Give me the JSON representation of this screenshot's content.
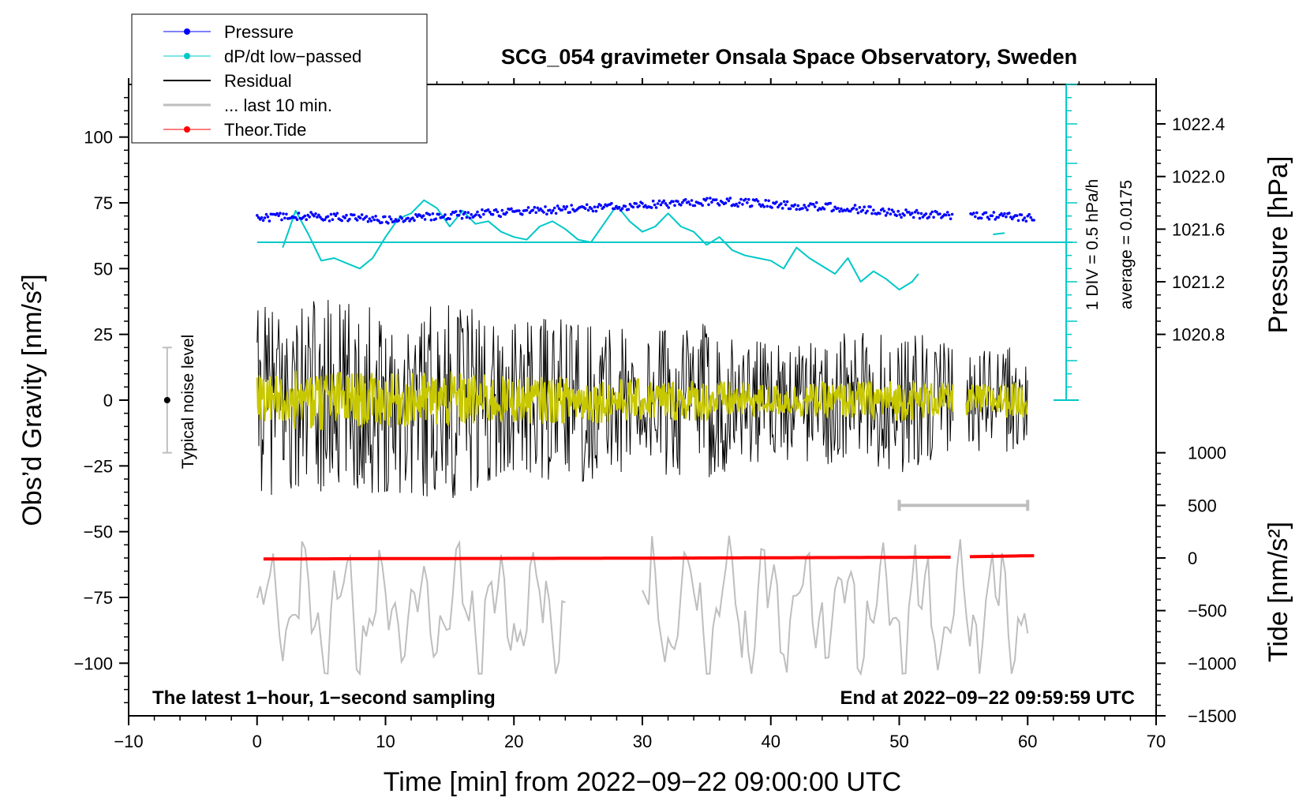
{
  "chart_data": {
    "type": "line",
    "title": "SCG_054 gravimeter Onsala Space Observatory, Sweden",
    "xlabel": "Time [min] from 2022−09−22 09:00:00 UTC",
    "ylabel_left": "Obs’d Gravity [nm/s²]",
    "ylabel_right_pressure": "Pressure [hPa]",
    "ylabel_right_tide": "Tide [nm/s²]",
    "xlim": [
      -10,
      70
    ],
    "ylim": [
      -120,
      120
    ],
    "x_ticks": [
      -10,
      0,
      10,
      20,
      30,
      40,
      50,
      60,
      70
    ],
    "x_tick_labels": [
      "−10",
      "0",
      "10",
      "20",
      "30",
      "40",
      "50",
      "60",
      "70"
    ],
    "y_ticks": [
      -100,
      -75,
      -50,
      -25,
      0,
      25,
      50,
      75,
      100
    ],
    "y_tick_labels": [
      "−100",
      "−75",
      "−50",
      "−25",
      "0",
      "25",
      "50",
      "75",
      "100"
    ],
    "pressure_ticks": [
      1020.8,
      1021.2,
      1021.6,
      1022.0,
      1022.4
    ],
    "pressure_tick_labels": [
      "1020.8",
      "1021.2",
      "1021.6",
      "1022.0",
      "1022.4"
    ],
    "tide_ticks": [
      -1500,
      -1000,
      -500,
      0,
      500,
      1000
    ],
    "tide_tick_labels": [
      "−1500",
      "−1000",
      "−500",
      "0",
      "500",
      "1000"
    ],
    "legend": {
      "position": "top-left",
      "entries": [
        {
          "label": "Pressure",
          "color": "#0000ff",
          "marker": true
        },
        {
          "label": "dP/dt low−passed",
          "color": "#00c8c8",
          "marker": true
        },
        {
          "label": "Residual",
          "color": "#000000",
          "marker": false
        },
        {
          "label": "... last 10 min.",
          "color": "#bebebe",
          "marker": false
        },
        {
          "label": "Theor.Tide",
          "color": "#ff0000",
          "marker": true
        }
      ]
    },
    "bottom_left_note": "The latest 1−hour, 1−second sampling",
    "bottom_right_note": "End at 2022−09−22 09:59:59 UTC",
    "noise_label": "Typical noise level",
    "noise_level": {
      "x": -7,
      "center": 0,
      "half_range": 20
    },
    "scale_note": "1 DIV = 0.5 hPa/h",
    "average_note": "average = 0.0175",
    "dpdt_baseline_y": 60,
    "dpdt_scale_bar": {
      "x": 63,
      "y_bottom": 0,
      "y_top": 120,
      "divisions": 24
    },
    "last10_bracket": {
      "x_start": 50,
      "x_end": 60,
      "y": -40
    },
    "series": [
      {
        "name": "Pressure",
        "color": "#0000ff",
        "y_axis": "left",
        "x": [
          0,
          2,
          4,
          6,
          8,
          10,
          12,
          14,
          16,
          18,
          20,
          22,
          24,
          26,
          28,
          30,
          32,
          34,
          36,
          38,
          40,
          42,
          44,
          46,
          48,
          50,
          52,
          54,
          55.5,
          57,
          59,
          60.5
        ],
        "values": [
          69,
          70,
          70,
          69.5,
          69.5,
          68.5,
          69.5,
          70,
          70.5,
          71,
          71.5,
          72,
          72.5,
          73,
          73.5,
          74,
          74.5,
          75,
          75.5,
          75,
          74.5,
          74,
          73.5,
          73,
          72,
          71,
          70.5,
          70,
          70.5,
          70,
          69.5,
          69.5
        ],
        "gaps_after_x": [
          54
        ]
      },
      {
        "name": "dP/dt low-passed",
        "color": "#00c8c8",
        "y_axis": "left",
        "x": [
          2,
          3,
          4,
          5,
          6,
          7,
          8,
          9,
          10,
          11,
          12,
          13,
          14,
          15,
          16,
          17,
          18,
          19,
          20,
          21,
          22,
          23,
          24,
          25,
          26,
          27,
          28,
          29,
          30,
          31,
          32,
          33,
          34,
          35,
          36,
          37,
          38,
          39,
          40,
          41,
          42,
          43,
          44,
          45,
          46,
          47,
          48,
          49,
          50,
          51,
          51.5
        ],
        "values": [
          58,
          72,
          63,
          53,
          54,
          52,
          50,
          54,
          62,
          69,
          71,
          76,
          73,
          66,
          72,
          67,
          68,
          64,
          62,
          61,
          66,
          68,
          65,
          61,
          60,
          67,
          74,
          68,
          64,
          66,
          71,
          66,
          64,
          59,
          62,
          57,
          55,
          54,
          53,
          50,
          58,
          54,
          51,
          48,
          54,
          45,
          49,
          46,
          42,
          45,
          48
        ]
      },
      {
        "name": "Residual",
        "color": "#000000",
        "y_axis": "left",
        "x": [
          0,
          60
        ],
        "values": [
          0,
          0
        ],
        "envelope": {
          "x": [
            0,
            5,
            10,
            15,
            20,
            25,
            30,
            35,
            40,
            45,
            50,
            55,
            60
          ],
          "amplitude": [
            35,
            40,
            35,
            38,
            30,
            32,
            28,
            30,
            22,
            25,
            28,
            20,
            20
          ]
        },
        "gaps": [
          [
            54.2,
            55.2
          ]
        ]
      },
      {
        "name": "Residual low-passed",
        "color": "#c8c800",
        "y_axis": "left",
        "x": [
          0,
          60
        ],
        "values": [
          0,
          0
        ],
        "envelope": {
          "x": [
            0,
            5,
            10,
            15,
            20,
            25,
            30,
            35,
            40,
            45,
            50,
            55,
            60
          ],
          "amplitude": [
            10,
            12,
            10,
            11,
            9,
            9,
            8,
            8,
            6,
            7,
            8,
            6,
            7
          ]
        },
        "gaps": [
          [
            54.2,
            55.2
          ]
        ]
      },
      {
        "name": "Theor.Tide",
        "color": "#ff0000",
        "y_axis": "tide",
        "x": [
          0.5,
          10,
          20,
          30,
          40,
          50,
          54.5,
          55.5,
          60.5
        ],
        "values": [
          -10,
          -6,
          -4,
          -2,
          2,
          6,
          8,
          12,
          22
        ],
        "gaps_after_x": [
          54.5
        ]
      },
      {
        "name": "... last 10 min.",
        "color": "#bebebe",
        "y_axis": "left",
        "x": [
          0,
          24,
          30,
          60
        ],
        "values": [
          -85,
          -80,
          -80,
          -85
        ],
        "segments": [
          [
            0,
            24
          ],
          [
            30,
            60
          ]
        ],
        "range": [
          -104,
          -43
        ]
      }
    ]
  }
}
